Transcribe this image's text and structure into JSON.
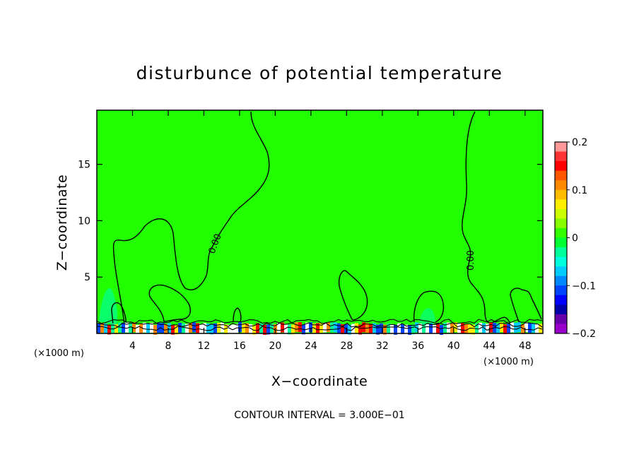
{
  "chart_data": {
    "type": "heatmap",
    "title": "disturbunce of potential temperature",
    "xlabel": "X−coordinate",
    "ylabel": "Z−coordinate",
    "x_unit": "(×1000 m)",
    "y_unit": "(×1000 m)",
    "xlim": [
      0,
      50
    ],
    "ylim": [
      0,
      19.8
    ],
    "x_ticks": [
      4,
      8,
      12,
      16,
      20,
      24,
      28,
      32,
      36,
      40,
      44,
      48
    ],
    "y_ticks": [
      5,
      10,
      15
    ],
    "contour_interval_text": "CONTOUR INTERVAL = 3.000E−01",
    "contour_label_values": [
      "0.00",
      "0.00"
    ],
    "colorbar": {
      "min": -0.2,
      "max": 0.2,
      "tick_labels": [
        "0.2",
        "0.1",
        "0",
        "−0.1",
        "−0.2"
      ],
      "tick_values": [
        0.2,
        0.1,
        0,
        -0.1,
        -0.2
      ],
      "colors_top_to_bottom": [
        "#ff9999",
        "#ff3333",
        "#ff0000",
        "#ff5500",
        "#ff8800",
        "#ffbb00",
        "#ffee00",
        "#ccff00",
        "#88ff00",
        "#33ff00",
        "#00ff33",
        "#00ff99",
        "#00ffdd",
        "#00ccff",
        "#0088ff",
        "#0044ff",
        "#0000ff",
        "#0000aa",
        "#6600aa",
        "#9900cc"
      ]
    },
    "background_value": 0,
    "background_color": "#22ff00"
  }
}
